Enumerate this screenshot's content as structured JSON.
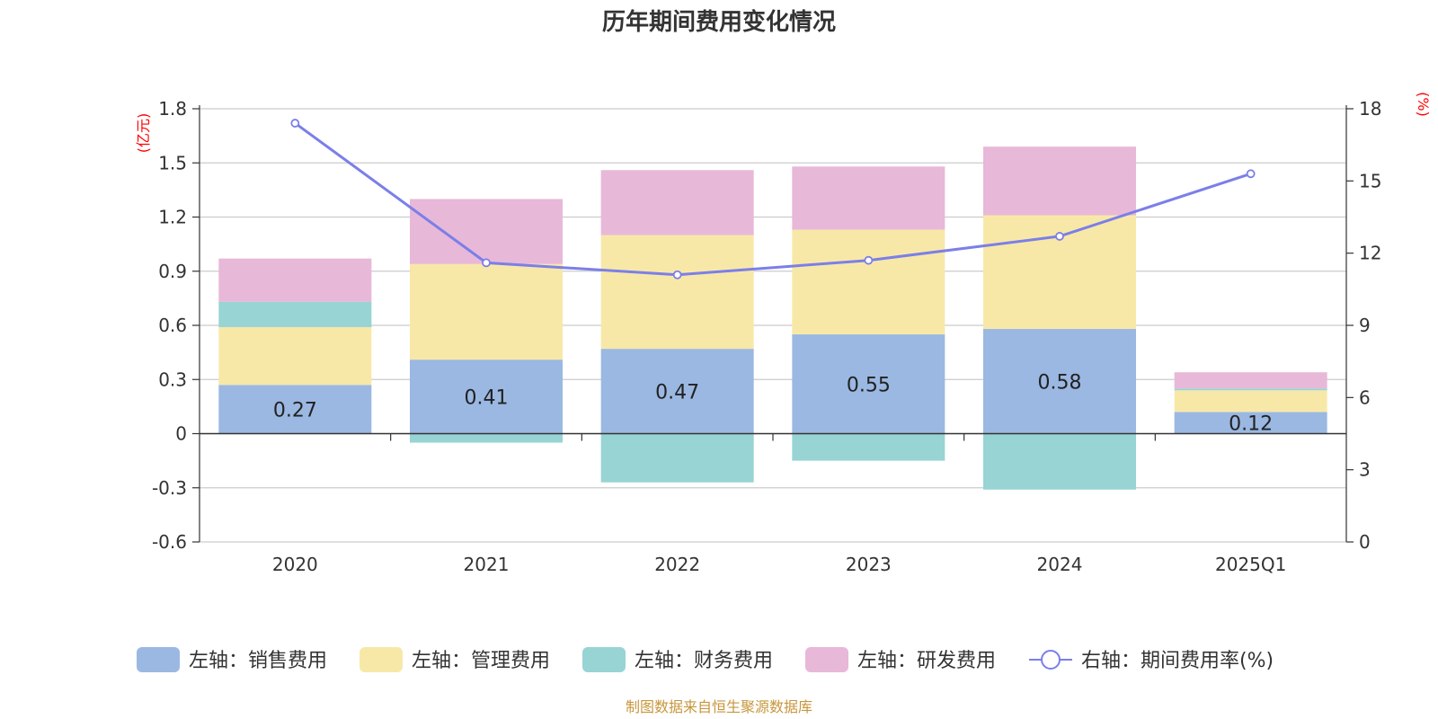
{
  "chart_data": {
    "type": "bar",
    "title": "历年期间费用变化情况",
    "categories": [
      "2020",
      "2021",
      "2022",
      "2023",
      "2024",
      "2025Q1"
    ],
    "left_axis": {
      "unit": "(亿元)",
      "min": -0.6,
      "max": 1.8,
      "ticks": [
        "-0.6",
        "-0.3",
        "0",
        "0.3",
        "0.6",
        "0.9",
        "1.2",
        "1.5",
        "1.8"
      ]
    },
    "right_axis": {
      "unit": "(%)",
      "min": 0,
      "max": 18,
      "ticks": [
        "0",
        "3",
        "6",
        "9",
        "12",
        "15",
        "18"
      ]
    },
    "stacked": true,
    "grid": true,
    "legend_position": "bottom",
    "series": [
      {
        "name": "左轴：销售费用",
        "axis": "left",
        "color": "#9bb8e2",
        "values": [
          0.27,
          0.41,
          0.47,
          0.55,
          0.58,
          0.12
        ],
        "labels": [
          "0.27",
          "0.41",
          "0.47",
          "0.55",
          "0.58",
          "0.12"
        ]
      },
      {
        "name": "左轴：管理费用",
        "axis": "left",
        "color": "#f8e8a8",
        "values": [
          0.32,
          0.53,
          0.63,
          0.58,
          0.63,
          0.12
        ]
      },
      {
        "name": "左轴：财务费用",
        "axis": "left",
        "color": "#98d4d4",
        "values": [
          0.14,
          -0.05,
          -0.27,
          -0.15,
          -0.31,
          0.01
        ]
      },
      {
        "name": "左轴：研发费用",
        "axis": "left",
        "color": "#e8b8d8",
        "values": [
          0.24,
          0.36,
          0.36,
          0.35,
          0.38,
          0.09
        ]
      },
      {
        "name": "右轴：期间费用率(%)",
        "axis": "right",
        "type": "line",
        "color": "#7b7fe8",
        "values": [
          17.4,
          11.6,
          11.1,
          11.7,
          12.7,
          15.3
        ]
      }
    ],
    "source": "制图数据来自恒生聚源数据库"
  }
}
